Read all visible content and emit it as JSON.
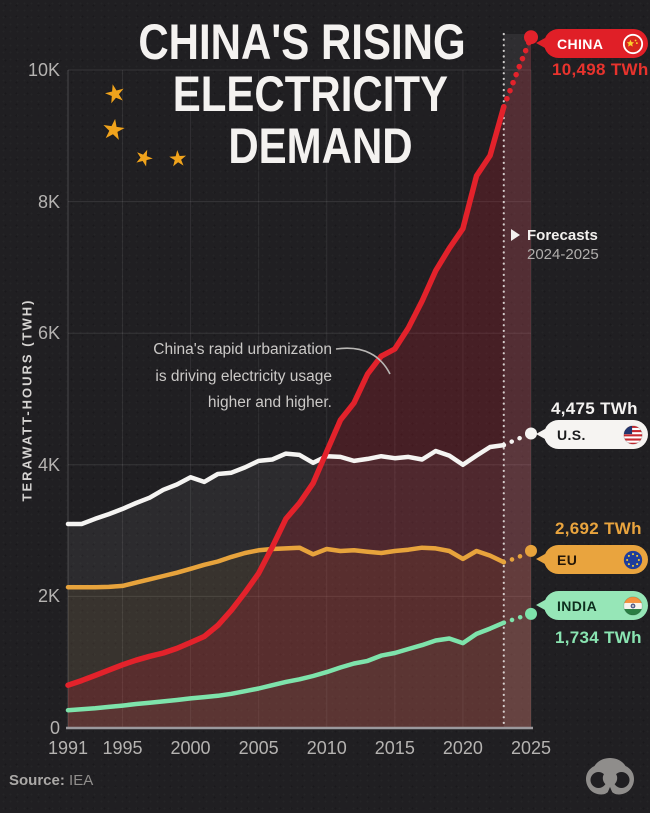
{
  "title": {
    "line1": "CHINA'S RISING",
    "line2": "ELECTRICITY",
    "line3": "DEMAND"
  },
  "y_axis_title": "TERAWATT-HOURS (TWH)",
  "annotation": {
    "line1": "China's rapid urbanization",
    "line2": "is driving electricity usage",
    "line3": "higher and higher."
  },
  "forecast_note": {
    "title": "Forecasts",
    "range": "2024-2025"
  },
  "labels": {
    "china": {
      "name": "CHINA",
      "value": "10,498 TWh",
      "flag": "china-flag-icon"
    },
    "us": {
      "name": "U.S.",
      "value": "4,475 TWh",
      "flag": "us-flag-icon"
    },
    "eu": {
      "name": "EU",
      "value": "2,692 TWh",
      "flag": "eu-flag-icon"
    },
    "india": {
      "name": "INDIA",
      "value": "1,734 TWh",
      "flag": "india-flag-icon"
    }
  },
  "source": {
    "label": "Source:",
    "value": "IEA"
  },
  "colors": {
    "china": "#e3222b",
    "us": "#f5f4f2",
    "eu": "#e7a33c",
    "india": "#7ee3ab",
    "background": "#201f22",
    "grid": "rgba(255,255,255,0.10)"
  },
  "chart_data": {
    "type": "line",
    "title": "China's Rising Electricity Demand",
    "xlabel": "",
    "ylabel": "Terawatt-hours (TWh)",
    "x_range": [
      1991,
      2025
    ],
    "ylim": [
      0,
      10500
    ],
    "grid": true,
    "forecast_from": 2023,
    "x_ticks": {
      "values": [
        1991,
        1995,
        2000,
        2005,
        2010,
        2015,
        2020,
        2025
      ],
      "labels": [
        "1991",
        "1995",
        "2000",
        "2005",
        "2010",
        "2015",
        "2020",
        "2025"
      ]
    },
    "y_ticks": {
      "values": [
        0,
        2000,
        4000,
        6000,
        8000,
        10000
      ],
      "labels": [
        "0",
        "2K",
        "4K",
        "6K",
        "8K",
        "10K"
      ]
    },
    "years": [
      1991,
      1992,
      1993,
      1994,
      1995,
      1996,
      1997,
      1998,
      1999,
      2000,
      2001,
      2002,
      2003,
      2004,
      2005,
      2006,
      2007,
      2008,
      2009,
      2010,
      2011,
      2012,
      2013,
      2014,
      2015,
      2016,
      2017,
      2018,
      2019,
      2020,
      2021,
      2022,
      2023,
      2024,
      2025
    ],
    "series": [
      {
        "id": "us",
        "name": "U.S.",
        "color": "#f5f4f2",
        "fill": "rgba(255,255,255,0.055)",
        "line_width": 4.5,
        "end_value": 4475,
        "values": [
          3100,
          3100,
          3180,
          3250,
          3330,
          3420,
          3500,
          3620,
          3700,
          3810,
          3740,
          3860,
          3880,
          3960,
          4060,
          4080,
          4170,
          4150,
          4030,
          4130,
          4120,
          4060,
          4090,
          4130,
          4100,
          4120,
          4080,
          4210,
          4140,
          4000,
          4140,
          4270,
          4300,
          4390,
          4475
        ]
      },
      {
        "id": "eu",
        "name": "EU",
        "color": "#e7a33c",
        "fill": "rgba(231,163,60,0.07)",
        "line_width": 4.5,
        "end_value": 2692,
        "values": [
          2140,
          2140,
          2140,
          2145,
          2160,
          2210,
          2260,
          2310,
          2360,
          2420,
          2480,
          2530,
          2600,
          2660,
          2700,
          2720,
          2730,
          2740,
          2640,
          2720,
          2690,
          2700,
          2680,
          2660,
          2690,
          2710,
          2740,
          2730,
          2690,
          2570,
          2690,
          2620,
          2520,
          2590,
          2692
        ]
      },
      {
        "id": "india",
        "name": "India",
        "color": "#7ee3ab",
        "fill": "rgba(126,227,171,0.05)",
        "line_width": 4.5,
        "end_value": 1734,
        "values": [
          270,
          285,
          300,
          320,
          340,
          365,
          385,
          405,
          425,
          450,
          470,
          490,
          520,
          560,
          600,
          650,
          700,
          740,
          790,
          850,
          920,
          980,
          1020,
          1100,
          1140,
          1200,
          1260,
          1330,
          1360,
          1290,
          1430,
          1510,
          1600,
          1670,
          1734
        ]
      },
      {
        "id": "china",
        "name": "China",
        "color": "#e3222b",
        "fill": "rgba(206,34,48,0.22)",
        "line_width": 5.5,
        "end_value": 10498,
        "values": [
          650,
          720,
          800,
          880,
          960,
          1030,
          1090,
          1140,
          1210,
          1300,
          1390,
          1560,
          1790,
          2060,
          2350,
          2750,
          3180,
          3420,
          3720,
          4200,
          4680,
          4940,
          5380,
          5650,
          5760,
          6080,
          6490,
          6950,
          7290,
          7590,
          8390,
          8700,
          9440,
          9980,
          10498
        ]
      }
    ],
    "legend_position": "right"
  }
}
